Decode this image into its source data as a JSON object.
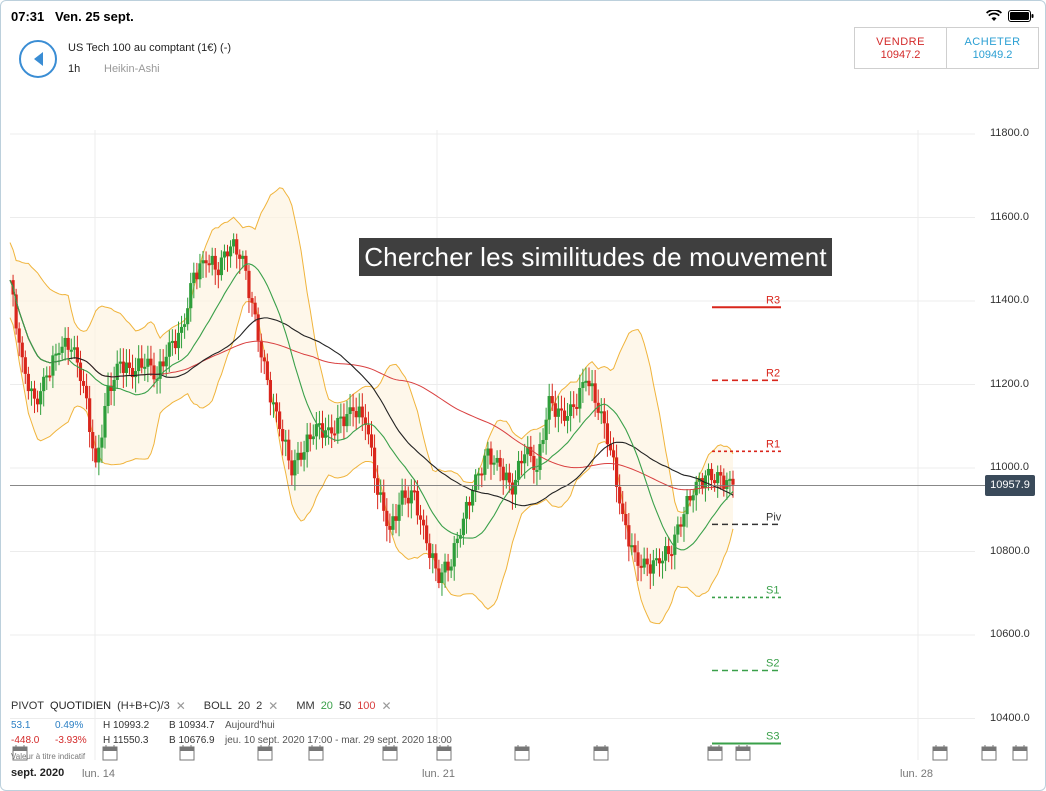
{
  "status": {
    "time": "07:31",
    "date": "Ven. 25 sept."
  },
  "header": {
    "instrument": "US Tech 100 au comptant (1€) (-)",
    "timeframe": "1h",
    "chart_type": "Heikin-Ashi"
  },
  "trade": {
    "sell_label": "VENDRE",
    "sell_price": "10947.2",
    "buy_label": "ACHETER",
    "buy_price": "10949.2"
  },
  "banner": "Chercher les similitudes de mouvement",
  "current_price": "10957.9",
  "pivots": {
    "r3": "R3",
    "r2": "R2",
    "r1": "R1",
    "piv": "Piv",
    "s1": "S1",
    "s2": "S2",
    "s3": "S3"
  },
  "indicators": {
    "pivot_label": "PIVOT",
    "pivot_period": "QUOTIDIEN",
    "pivot_formula": "(H+B+C)/3",
    "boll_label": "BOLL",
    "boll_period": "20",
    "boll_dev": "2",
    "mm_label": "MM",
    "mm_1": "20",
    "mm_2": "50",
    "mm_3": "100",
    "close_glyph": "✕"
  },
  "stats": {
    "row1": {
      "a": "53.1",
      "b": "0.49%",
      "h": "H 10993.2",
      "l": "B 10934.7",
      "period": "Aujourd'hui"
    },
    "row2": {
      "a": "-448.0",
      "b": "-3.93%",
      "h": "H 11550.3",
      "l": "B 10676.9",
      "period": "jeu. 10 sept. 2020 17:00 - mar. 29 sept. 2020 18:00"
    }
  },
  "note": "Valeur à titre indicatif",
  "xaxis": {
    "month": "sept. 2020",
    "labels": [
      "lun. 14",
      "lun. 21",
      "lun. 28"
    ]
  },
  "colors": {
    "up": "#2e9e3a",
    "down": "#d9261c",
    "boll": "#f0b43c",
    "ma20": "#3aa04a",
    "ma50": "#222222",
    "ma100": "#d94040",
    "accent": "#3a8dd4"
  },
  "chart_data": {
    "type": "candlestick",
    "y_ticks": [
      "11800.0",
      "11600.0",
      "11400.0",
      "11200.0",
      "11000.0",
      "10800.0",
      "10600.0",
      "10400.0"
    ],
    "ylim": [
      10400,
      11800
    ],
    "pivot_levels": {
      "R3": 11385,
      "R2": 11210,
      "R1": 11040,
      "Piv": 10865,
      "S1": 10690,
      "S2": 10515,
      "S3": 10340
    },
    "last_price": 10957.9,
    "close_path": [
      11450,
      11250,
      11150,
      11220,
      11290,
      11300,
      11200,
      11000,
      11180,
      11250,
      11230,
      11260,
      11220,
      11290,
      11320,
      11460,
      11500,
      11480,
      11540,
      11500,
      11350,
      11200,
      11100,
      11000,
      11050,
      11100,
      11080,
      11110,
      11140,
      11120,
      10950,
      10850,
      10930,
      10930,
      10820,
      10740,
      10780,
      10880,
      10970,
      11030,
      11000,
      10950,
      11050,
      11000,
      11160,
      11120,
      11140,
      11220,
      11150,
      11050,
      10880,
      10780,
      10760,
      10780,
      10810,
      10900,
      10960,
      10980,
      10970,
      10960
    ]
  }
}
